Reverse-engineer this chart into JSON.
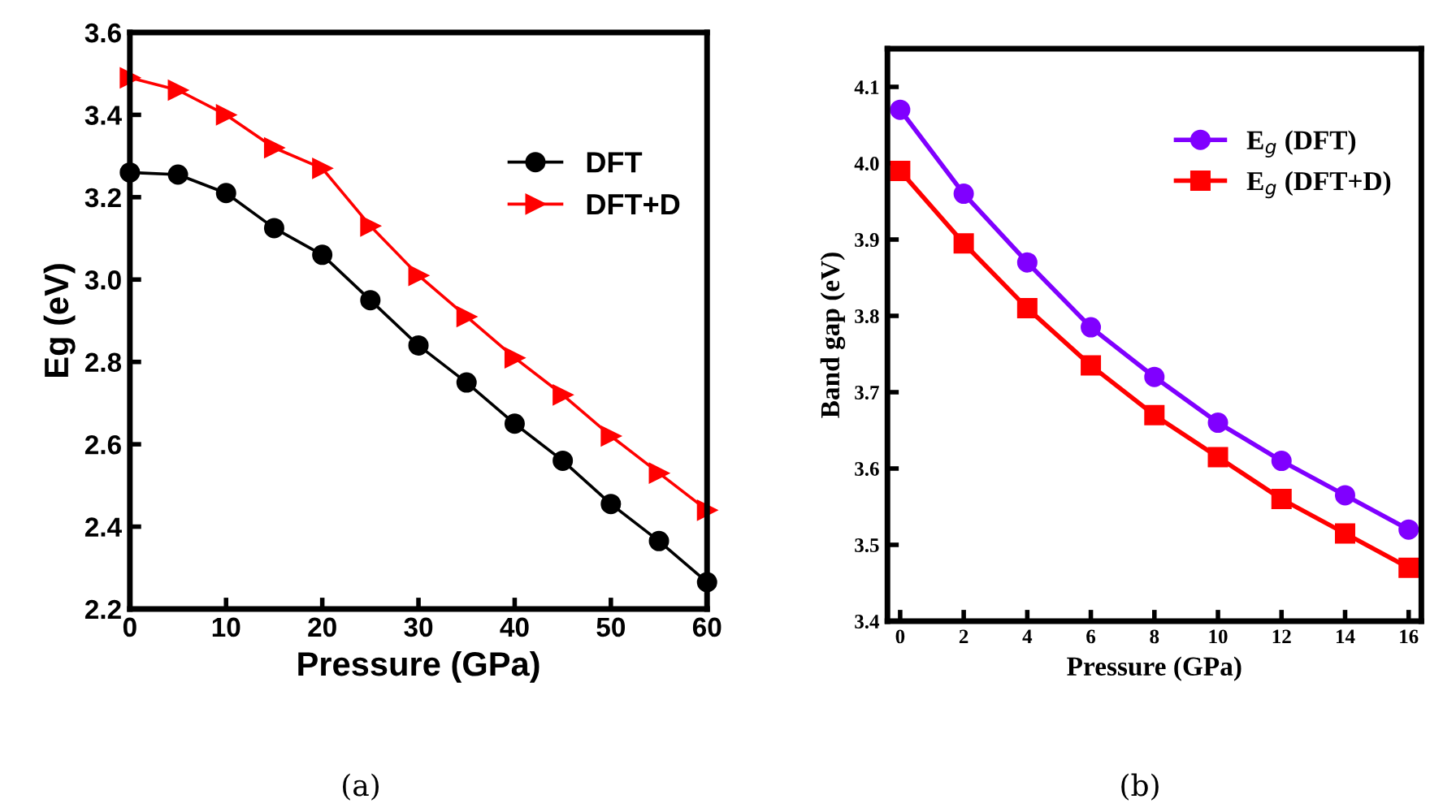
{
  "chart_data": [
    {
      "type": "line",
      "xlabel": "Pressure (GPa)",
      "ylabel": "Eg (eV)",
      "x": [
        0,
        5,
        10,
        15,
        20,
        25,
        30,
        35,
        40,
        45,
        50,
        55,
        60
      ],
      "series": [
        {
          "name": "DFT",
          "color": "#000000",
          "marker": "circle",
          "values": [
            3.26,
            3.255,
            3.21,
            3.125,
            3.06,
            2.95,
            2.84,
            2.75,
            2.65,
            2.56,
            2.455,
            2.365,
            2.265
          ]
        },
        {
          "name": "DFT+D",
          "color": "#ff0000",
          "marker": "triangle",
          "values": [
            3.49,
            3.46,
            3.4,
            3.32,
            3.27,
            3.13,
            3.01,
            2.91,
            2.81,
            2.72,
            2.62,
            2.53,
            2.44
          ]
        }
      ],
      "xlim": [
        0,
        60
      ],
      "xticks": [
        0,
        10,
        20,
        30,
        40,
        50,
        60
      ],
      "ylim": [
        2.2,
        3.6
      ],
      "yticks": [
        2.2,
        2.4,
        2.6,
        2.8,
        {
          "value": 3.0,
          "label": "3.0"
        },
        3.2,
        3.4,
        3.6
      ],
      "legend": "top right",
      "grid": false,
      "annotations": [
        "(a)"
      ]
    },
    {
      "type": "line",
      "xlabel": "Pressure (GPa)",
      "ylabel": "Band gap (eV)",
      "x": [
        0,
        2,
        4,
        6,
        8,
        10,
        12,
        14,
        16
      ],
      "series": [
        {
          "name": "E$_{g}$ (DFT)",
          "color": "#8000ff",
          "marker": "circle",
          "values": [
            4.07,
            3.96,
            3.87,
            3.785,
            3.72,
            3.66,
            3.61,
            3.565,
            3.52
          ]
        },
        {
          "name": "E$_{g}$ (DFT+D)",
          "color": "#ff0000",
          "marker": "square",
          "values": [
            3.99,
            3.895,
            3.81,
            3.735,
            3.67,
            3.615,
            3.56,
            3.515,
            3.47
          ]
        }
      ],
      "xlim": [
        -0.4,
        16.4
      ],
      "xticks": [
        0,
        2,
        4,
        6,
        8,
        10,
        12,
        14,
        16
      ],
      "ylim": [
        3.4,
        4.15
      ],
      "yticks": [
        3.4,
        3.5,
        3.6,
        3.7,
        3.8,
        3.9,
        {
          "value": 4.0,
          "label": "4.0"
        },
        4.1
      ],
      "legend": "top right",
      "grid": false,
      "annotations": [
        "(b)"
      ]
    }
  ]
}
